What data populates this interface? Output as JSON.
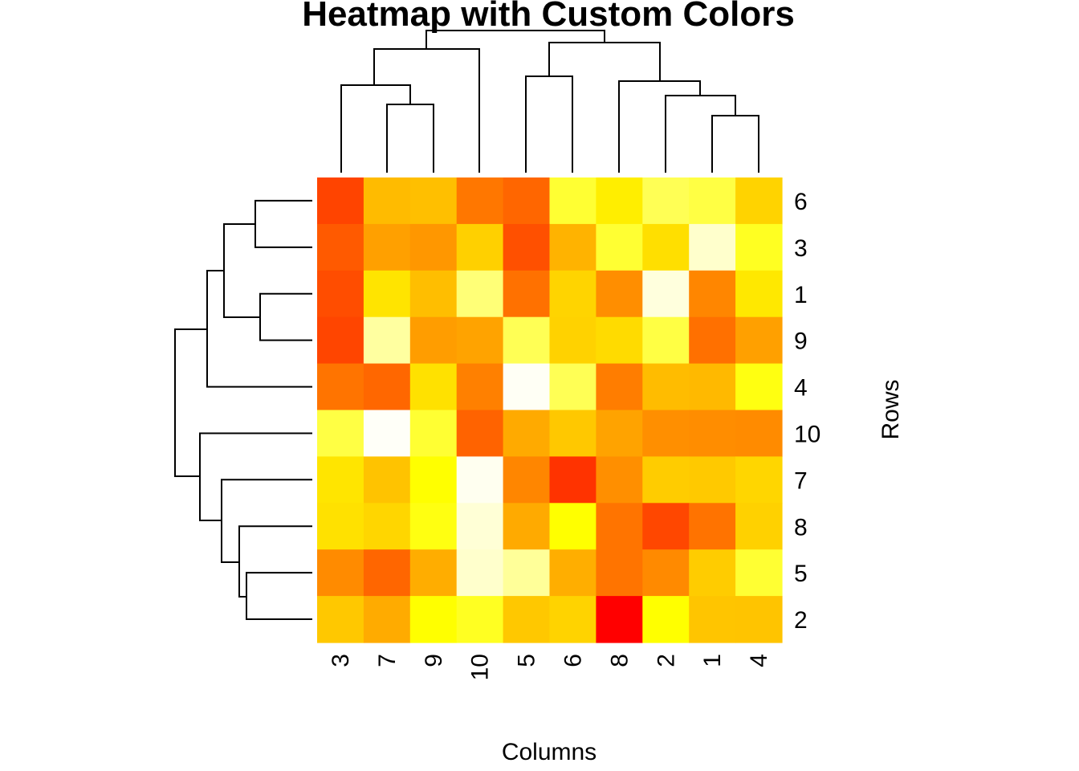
{
  "chart_data": {
    "type": "heatmap",
    "title": "Heatmap with Custom Colors",
    "xlabel": "Columns",
    "ylabel": "Rows",
    "color_scale": "heat (red → orange → yellow → white)",
    "column_order": [
      "3",
      "7",
      "9",
      "10",
      "5",
      "6",
      "8",
      "2",
      "1",
      "4"
    ],
    "row_order": [
      "6",
      "3",
      "1",
      "9",
      "4",
      "10",
      "7",
      "8",
      "5",
      "2"
    ],
    "cell_colors": [
      [
        "#ff4400",
        "#ffbb00",
        "#ffbf00",
        "#ff7700",
        "#ff6600",
        "#ffff33",
        "#ffee00",
        "#ffff55",
        "#ffff44",
        "#ffd300"
      ],
      [
        "#ff5a00",
        "#ffa000",
        "#ff9700",
        "#ffd000",
        "#ff5000",
        "#ffb300",
        "#ffff33",
        "#ffdf00",
        "#ffffcc",
        "#ffff22"
      ],
      [
        "#ff4d00",
        "#ffe400",
        "#ffbe00",
        "#ffff77",
        "#ff7100",
        "#ffd400",
        "#ff8e00",
        "#ffffdd",
        "#ff8600",
        "#ffe800"
      ],
      [
        "#ff4500",
        "#ffffa0",
        "#ff9d00",
        "#ffa300",
        "#ffff55",
        "#ffd200",
        "#ffdb00",
        "#ffff44",
        "#ff7000",
        "#ffa000"
      ],
      [
        "#ff7400",
        "#ff6700",
        "#ffe100",
        "#ff8000",
        "#fffff5",
        "#ffff55",
        "#ff7d00",
        "#ffbc00",
        "#ffb900",
        "#ffff11"
      ],
      [
        "#ffff44",
        "#fffff8",
        "#ffff33",
        "#ff6300",
        "#ffaa00",
        "#ffc800",
        "#ffa300",
        "#ff8f00",
        "#ff8d00",
        "#ff8b00"
      ],
      [
        "#ffe500",
        "#ffc300",
        "#ffff00",
        "#fffff0",
        "#ff8600",
        "#ff3300",
        "#ff8f00",
        "#ffcc00",
        "#ffc900",
        "#ffd600"
      ],
      [
        "#ffe100",
        "#ffd600",
        "#ffff11",
        "#ffffd6",
        "#ffaa00",
        "#ffff00",
        "#ff7400",
        "#ff4700",
        "#ff7300",
        "#ffd100"
      ],
      [
        "#ff8b00",
        "#ff6600",
        "#ffad00",
        "#ffffcc",
        "#ffff99",
        "#ffae00",
        "#ff7400",
        "#ff8a00",
        "#ffcc00",
        "#ffff33"
      ],
      [
        "#ffc800",
        "#ffab00",
        "#ffff00",
        "#ffff22",
        "#ffc800",
        "#ffd300",
        "#ff0000",
        "#ffff00",
        "#ffc500",
        "#ffc400"
      ]
    ],
    "column_dendrogram": "((3,(7,9)),10),(5,6) | (8,(2,(1,4)))",
    "row_dendrogram": "(((6,3),(1,9)),4) | (10,(7,(8,(5,2))))"
  }
}
